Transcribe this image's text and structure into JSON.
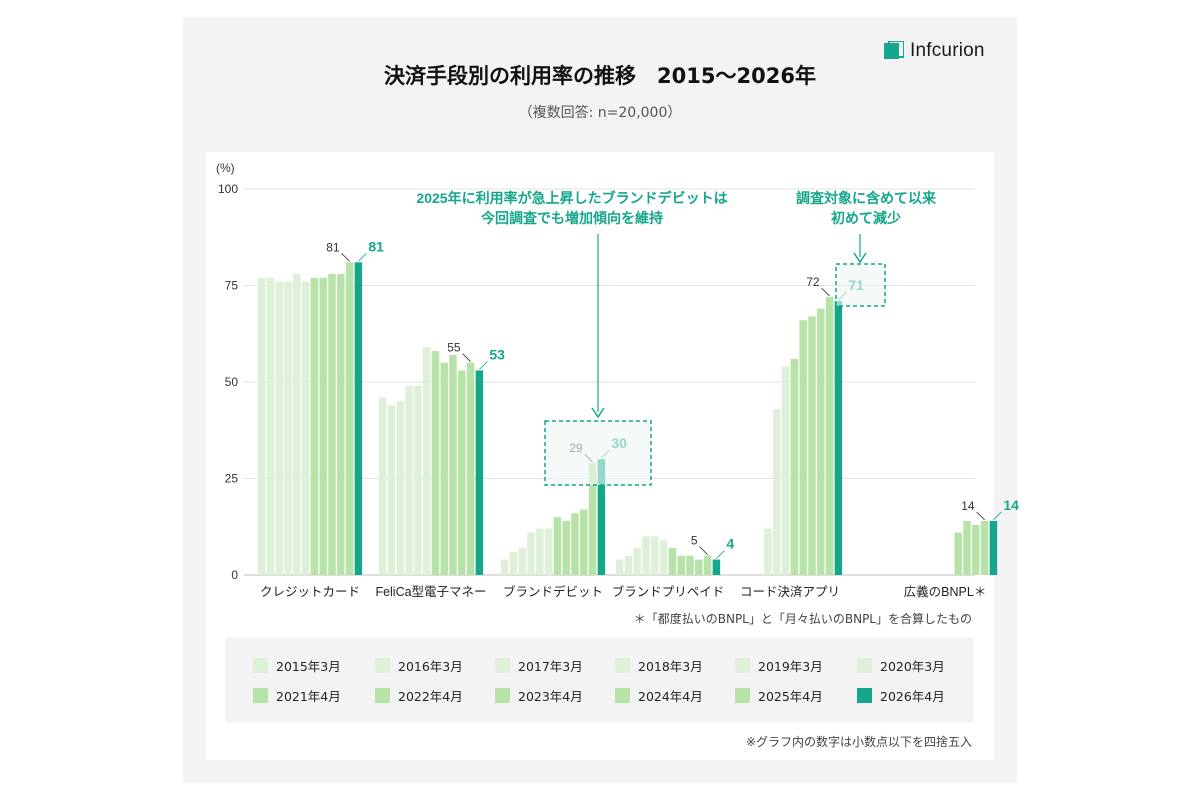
{
  "brand": {
    "name": "Infcurion",
    "accent": "#15a68b"
  },
  "title": "決済手段別の利用率の推移　2015～2026年",
  "subtitle": "（複数回答: n=20,000）",
  "footnote": "＊「都度払いのBNPL」と「月々払いのBNPL」を合算したもの",
  "note": "※グラフ内の数字は小数点以下を四捨五入",
  "colors": {
    "periods": [
      "#dff0d8",
      "#dff0d8",
      "#dff0d8",
      "#dff0d8",
      "#dff0d8",
      "#dff0d8",
      "#b7e3a8",
      "#b7e3a8",
      "#b7e3a8",
      "#b7e3a8",
      "#b7e3a8",
      "#15a68b"
    ],
    "grid": "#e2e2e2",
    "callout": "#15a68b"
  },
  "legend": [
    "2015年3月",
    "2016年3月",
    "2017年3月",
    "2018年3月",
    "2019年3月",
    "2020年3月",
    "2021年4月",
    "2022年4月",
    "2023年4月",
    "2024年4月",
    "2025年4月",
    "2026年4月"
  ],
  "annotations": [
    {
      "text": [
        "2025年に利用率が急上昇したブランドデビットは",
        "今回調査でも増加傾向を維持"
      ],
      "target": "ブランドデビット"
    },
    {
      "text": [
        "調査対象に含めて以来",
        "初めて減少"
      ],
      "target": "コード決済アプリ"
    }
  ],
  "chart_data": {
    "type": "bar",
    "title": "決済手段別の利用率の推移　2015～2026年",
    "ylabel": "(%)",
    "ylim": [
      0,
      100
    ],
    "yticks": [
      0,
      25,
      50,
      75,
      100
    ],
    "grid": true,
    "legend_position": "bottom",
    "categories": [
      "クレジットカード",
      "FeliCa型電子マネー",
      "ブランドデビット",
      "ブランドプリペイド",
      "コード決済アプリ",
      "広義のBNPL＊"
    ],
    "series": [
      {
        "name": "2015年3月",
        "values": [
          77,
          46,
          4,
          4,
          null,
          null
        ]
      },
      {
        "name": "2016年3月",
        "values": [
          77,
          44,
          6,
          5,
          null,
          null
        ]
      },
      {
        "name": "2017年3月",
        "values": [
          76,
          45,
          7,
          7,
          null,
          null
        ]
      },
      {
        "name": "2018年3月",
        "values": [
          76,
          49,
          11,
          10,
          12,
          null
        ]
      },
      {
        "name": "2019年3月",
        "values": [
          78,
          49,
          12,
          10,
          43,
          null
        ]
      },
      {
        "name": "2020年3月",
        "values": [
          76,
          59,
          12,
          9,
          54,
          null
        ]
      },
      {
        "name": "2021年4月",
        "values": [
          77,
          58,
          15,
          7,
          56,
          null
        ]
      },
      {
        "name": "2022年4月",
        "values": [
          77,
          55,
          14,
          5,
          66,
          11
        ]
      },
      {
        "name": "2023年4月",
        "values": [
          78,
          57,
          16,
          5,
          67,
          14
        ]
      },
      {
        "name": "2024年4月",
        "values": [
          78,
          53,
          17,
          4,
          69,
          13
        ]
      },
      {
        "name": "2025年4月",
        "values": [
          81,
          55,
          29,
          5,
          72,
          14
        ]
      },
      {
        "name": "2026年4月",
        "values": [
          81,
          53,
          30,
          4,
          71,
          14
        ]
      }
    ],
    "value_labels": {
      "previous": [
        81,
        55,
        29,
        5,
        72,
        14
      ],
      "latest": [
        81,
        53,
        30,
        4,
        71,
        14
      ]
    }
  }
}
